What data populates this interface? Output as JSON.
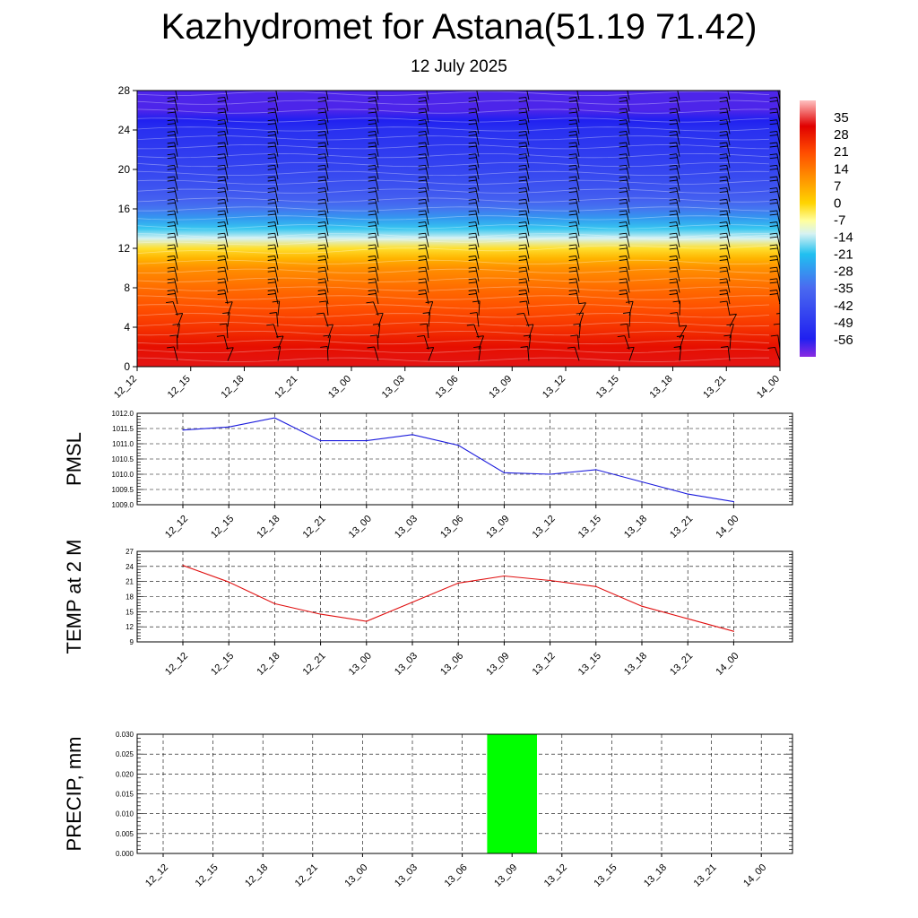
{
  "title": "Kazhydromet for Astana(51.19 71.42)",
  "subtitle": "12 July 2025",
  "colors": {
    "pmsl_line": "#1a1adc",
    "temp_line": "#e01010",
    "precip_bar": "#00ff00"
  },
  "chart_data": [
    {
      "type": "heatmap",
      "title": "",
      "xlabel": "",
      "ylabel": "",
      "x_tick_labels": [
        "12_12",
        "12_15",
        "12_18",
        "12_21",
        "13_00",
        "13_03",
        "13_06",
        "13_09",
        "13_12",
        "13_15",
        "13_18",
        "13_21",
        "14_00"
      ],
      "y_ticks": [
        0,
        4,
        8,
        12,
        16,
        20,
        24,
        28
      ],
      "ylim": [
        0,
        28
      ],
      "colorbar_labels": [
        35,
        28,
        21,
        14,
        7,
        0,
        -7,
        -14,
        -21,
        -28,
        -35,
        -42,
        -49,
        -56
      ],
      "colorbar_range": [
        -63,
        42
      ],
      "has_wind_barbs": true,
      "temperature_profile": {
        "levels": [
          0,
          2,
          4,
          6,
          8,
          10,
          11,
          12,
          13,
          14,
          15,
          16,
          17,
          18,
          20,
          22,
          24,
          25,
          26,
          28
        ],
        "values": [
          26,
          22,
          17,
          13,
          9,
          4,
          -2,
          -9,
          -20,
          -27,
          -34,
          -40,
          -44,
          -46,
          -49,
          -51,
          -53,
          -56,
          -59,
          -59
        ]
      }
    },
    {
      "type": "line",
      "title": "",
      "ylabel": "PMSL",
      "categories": [
        "12_12",
        "12_15",
        "12_18",
        "12_21",
        "13_00",
        "13_03",
        "13_06",
        "13_09",
        "13_12",
        "13_15",
        "13_18",
        "13_21",
        "14_00"
      ],
      "series": [
        {
          "values": [
            1011.45,
            1011.55,
            1011.85,
            1011.1,
            1011.1,
            1011.3,
            1010.95,
            1010.05,
            1010.0,
            1010.15,
            1009.75,
            1009.35,
            1009.1
          ]
        }
      ],
      "y_ticks": [
        "1009.0",
        "1009.5",
        "1010.0",
        "1010.5",
        "1011.0",
        "1011.5",
        "1012.0"
      ],
      "ylim": [
        1009.0,
        1012.0
      ],
      "grid": true
    },
    {
      "type": "line",
      "title": "",
      "ylabel": "TEMP at 2 M",
      "categories": [
        "12_12",
        "12_15",
        "12_18",
        "12_21",
        "13_00",
        "13_03",
        "13_06",
        "13_09",
        "13_12",
        "13_15",
        "13_18",
        "13_21",
        "14_00"
      ],
      "series": [
        {
          "values": [
            24.2,
            20.9,
            16.6,
            14.5,
            13.1,
            16.9,
            20.7,
            22.1,
            21.2,
            20.0,
            16.1,
            13.6,
            11.1
          ]
        }
      ],
      "y_ticks": [
        9,
        12,
        15,
        18,
        21,
        24,
        27
      ],
      "ylim": [
        9,
        27
      ],
      "grid": true
    },
    {
      "type": "bar",
      "title": "",
      "ylabel": "PRECIP, mm",
      "categories": [
        "12_12",
        "12_15",
        "12_18",
        "12_21",
        "13_00",
        "13_03",
        "13_06",
        "13_09",
        "13_12",
        "13_15",
        "13_18",
        "13_21",
        "14_00"
      ],
      "values": [
        0,
        0,
        0,
        0,
        0,
        0,
        0,
        0.03,
        0,
        0,
        0,
        0,
        0
      ],
      "y_ticks": [
        "0.000",
        "0.005",
        "0.010",
        "0.015",
        "0.020",
        "0.025",
        "0.030"
      ],
      "ylim": [
        0,
        0.03
      ],
      "grid": true
    }
  ]
}
